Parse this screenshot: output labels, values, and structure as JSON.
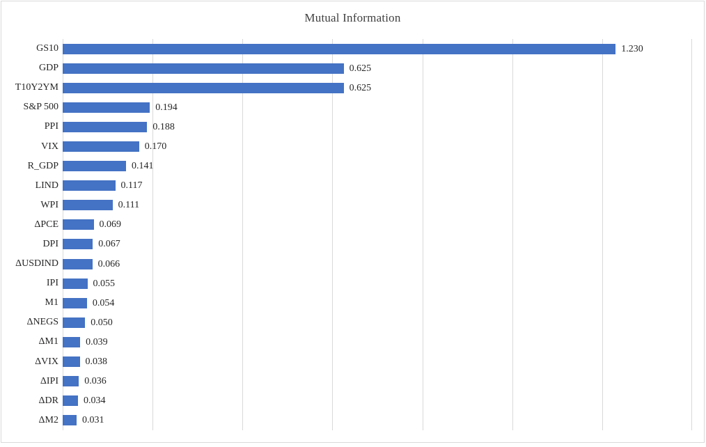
{
  "chart_data": {
    "type": "bar",
    "orientation": "horizontal",
    "title": "Mutual Information",
    "categories": [
      "GS10",
      "GDP",
      "T10Y2YM",
      "S&P 500",
      "PPI",
      "VIX",
      "R_GDP",
      "LIND",
      "WPI",
      "ΔPCE",
      "DPI",
      "ΔUSDIND",
      "IPI",
      "M1",
      "ΔNEGS",
      "ΔM1",
      "ΔVIX",
      "ΔIPI",
      "ΔDR",
      "ΔM2"
    ],
    "values": [
      1.23,
      0.625,
      0.625,
      0.194,
      0.188,
      0.17,
      0.141,
      0.117,
      0.111,
      0.069,
      0.067,
      0.066,
      0.055,
      0.054,
      0.05,
      0.039,
      0.038,
      0.036,
      0.034,
      0.031
    ],
    "value_labels": [
      "1.230",
      "0.625",
      "0.625",
      "0.194",
      "0.188",
      "0.170",
      "0.141",
      "0.117",
      "0.111",
      "0.069",
      "0.067",
      "0.066",
      "0.055",
      "0.054",
      "0.050",
      "0.039",
      "0.038",
      "0.036",
      "0.034",
      "0.031"
    ],
    "xlabel": "",
    "ylabel": "",
    "xlim": [
      0,
      1.4
    ],
    "gridline_interval": 0.2,
    "grid": true,
    "legend_position": "none",
    "data_labels_visible": true,
    "colors": {
      "bar": "#4472C4",
      "gridline": "#D9D9D9",
      "frame_border": "#D9D9D9",
      "title": "#404040",
      "label": "#262626",
      "background": "#FFFFFF"
    }
  }
}
